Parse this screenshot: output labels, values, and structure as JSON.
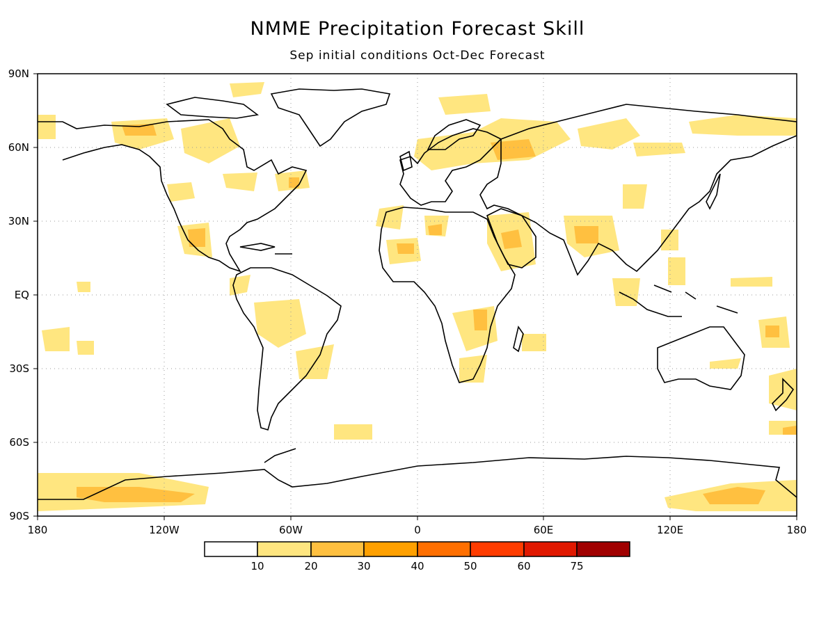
{
  "title": "NMME Precipitation Forecast Skill",
  "subtitle": "Sep initial conditions   Oct-Dec Forecast",
  "axes": {
    "lat_labels": [
      "90N",
      "60N",
      "30N",
      "EQ",
      "30S",
      "60S",
      "90S"
    ],
    "lon_labels": [
      "180",
      "120W",
      "60W",
      "0",
      "60E",
      "120E",
      "180"
    ],
    "grid": "dotted"
  },
  "colorbar": {
    "labels": [
      "10",
      "20",
      "30",
      "40",
      "50",
      "60",
      "75"
    ],
    "colors": [
      "#ffffff",
      "#ffe680",
      "#ffc040",
      "#ffa000",
      "#ff6f00",
      "#ff3c00",
      "#e01800",
      "#a00000"
    ]
  },
  "colors": {
    "coastline": "#000000",
    "skill_10_20": "#ffe680",
    "skill_20_30": "#ffc040"
  }
}
